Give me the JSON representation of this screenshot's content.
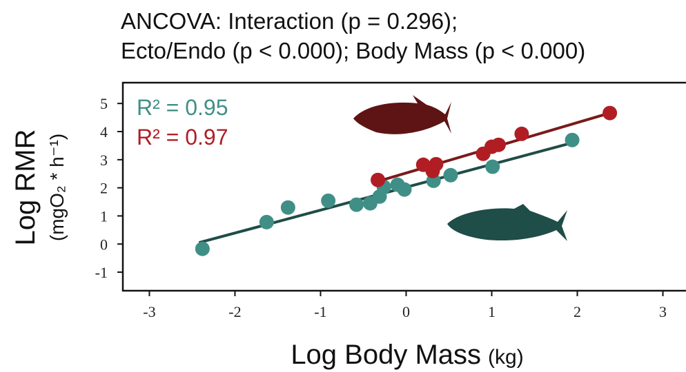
{
  "chart_data": {
    "type": "scatter",
    "title": [
      "ANCOVA: Interaction (p = 0.296);",
      "Ecto/Endo (p < 0.000); Body Mass (p < 0.000)"
    ],
    "y_label": "Log RMR",
    "y_label_unit": "(mgO₂ * h⁻¹)",
    "x_label": "Log Body Mass",
    "x_label_unit": "(kg)",
    "xlim": [
      -3.31,
      3.27
    ],
    "ylim": [
      -1.66,
      5.74
    ],
    "xticks": [
      -3,
      -2,
      -1,
      0,
      1,
      2,
      3
    ],
    "yticks": [
      -1,
      0,
      1,
      2,
      3,
      4,
      5
    ],
    "annotations": [
      {
        "text": "R² = 0.95",
        "color": "#3f8f87"
      },
      {
        "text": "R² = 0.97",
        "color": "#b01e24"
      }
    ],
    "series": [
      {
        "color": "#3f8f87",
        "line_color": "#1f4d48",
        "x": [
          -2.38,
          -1.63,
          -1.38,
          -0.91,
          -0.58,
          -0.42,
          -0.31,
          -0.26,
          -0.1,
          -0.02,
          0.32,
          0.52,
          1.01,
          1.94
        ],
        "y": [
          -0.17,
          0.78,
          1.3,
          1.54,
          1.4,
          1.45,
          1.69,
          2.03,
          2.11,
          1.94,
          2.25,
          2.45,
          2.75,
          3.7
        ],
        "fit": {
          "x": [
            -2.42,
            1.94
          ],
          "y": [
            0.05,
            3.6
          ]
        }
      },
      {
        "color": "#b01e24",
        "line_color": "#7a1a1a",
        "x": [
          -0.33,
          0.2,
          0.31,
          0.35,
          0.9,
          1.0,
          1.08,
          1.35,
          2.38
        ],
        "y": [
          2.28,
          2.82,
          2.6,
          2.84,
          3.21,
          3.46,
          3.53,
          3.92,
          4.66
        ],
        "fit": {
          "x": [
            -0.33,
            2.38
          ],
          "y": [
            2.23,
            4.66
          ]
        }
      }
    ]
  }
}
